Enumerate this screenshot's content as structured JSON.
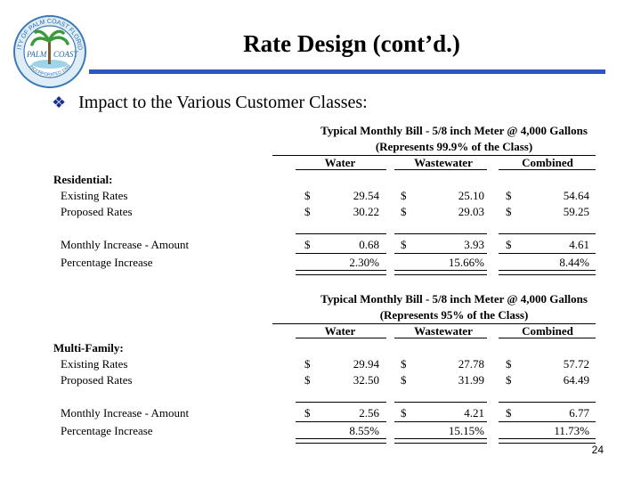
{
  "slide": {
    "title": "Rate Design (cont’d.)",
    "bullet": "Impact to the Various Customer Classes:",
    "page_number": "24",
    "accent_color": "#2f54c4",
    "logo": {
      "icon": "city-seal-palm-tree-icon",
      "text_top": "CITY OF PALM COAST FLORIDA",
      "text_mid_left": "PALM",
      "text_mid_right": "COAST",
      "text_bottom": "INCORPORATED 1999"
    }
  },
  "tables": [
    {
      "heading1": "Typical Monthly Bill - 5/8 inch Meter @ 4,000 Gallons",
      "heading2": "(Represents 99.9% of the Class)",
      "columns": [
        "Water",
        "Wastewater",
        "Combined"
      ],
      "section": "Residential:",
      "rows": [
        {
          "label": "Existing Rates",
          "cur": [
            "$",
            "$",
            "$"
          ],
          "values": [
            "29.54",
            "25.10",
            "54.64"
          ]
        },
        {
          "label": "Proposed Rates",
          "cur": [
            "$",
            "$",
            "$"
          ],
          "values": [
            "30.22",
            "29.03",
            "59.25"
          ]
        },
        {
          "label": "Monthly Increase - Amount",
          "cur": [
            "$",
            "$",
            "$"
          ],
          "values": [
            "0.68",
            "3.93",
            "4.61"
          ]
        },
        {
          "label": "Percentage Increase",
          "cur": [
            "",
            "",
            ""
          ],
          "values": [
            "2.30%",
            "15.66%",
            "8.44%"
          ]
        }
      ]
    },
    {
      "heading1": "Typical Monthly Bill - 5/8 inch Meter @ 4,000 Gallons",
      "heading2": "(Represents 95% of the Class)",
      "columns": [
        "Water",
        "Wastewater",
        "Combined"
      ],
      "section": "Multi-Family:",
      "rows": [
        {
          "label": "Existing Rates",
          "cur": [
            "$",
            "$",
            "$"
          ],
          "values": [
            "29.94",
            "27.78",
            "57.72"
          ]
        },
        {
          "label": "Proposed Rates",
          "cur": [
            "$",
            "$",
            "$"
          ],
          "values": [
            "32.50",
            "31.99",
            "64.49"
          ]
        },
        {
          "label": "Monthly Increase - Amount",
          "cur": [
            "$",
            "$",
            "$"
          ],
          "values": [
            "2.56",
            "4.21",
            "6.77"
          ]
        },
        {
          "label": "Percentage Increase",
          "cur": [
            "",
            "",
            ""
          ],
          "values": [
            "8.55%",
            "15.15%",
            "11.73%"
          ]
        }
      ]
    }
  ]
}
